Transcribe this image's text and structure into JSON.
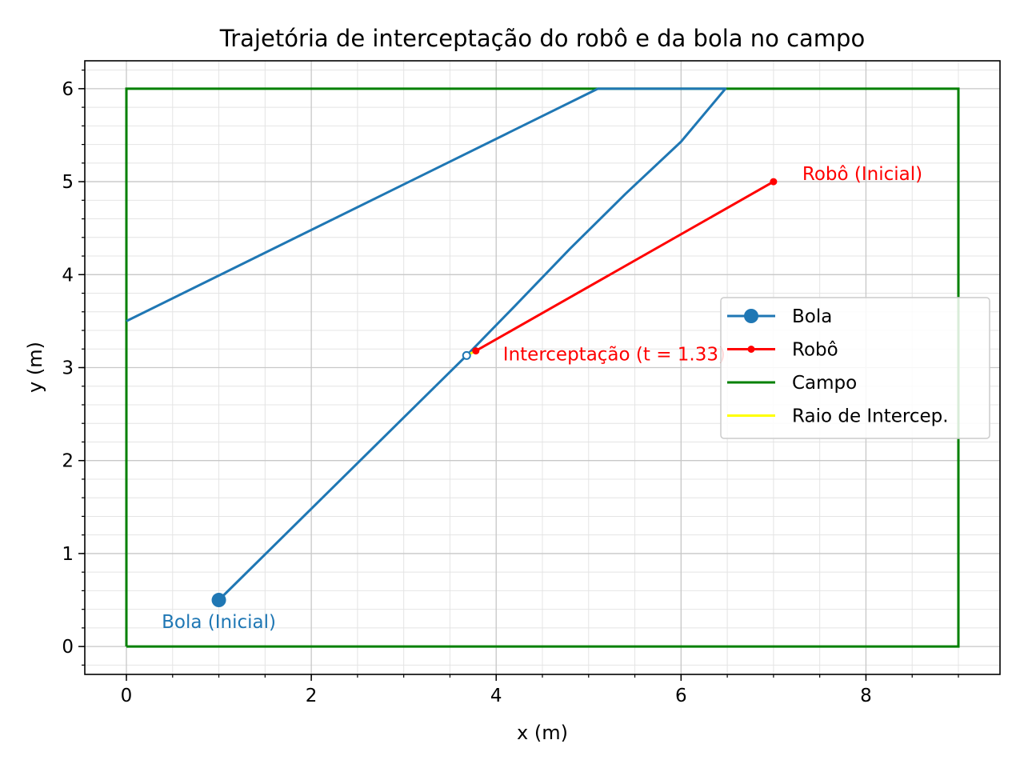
{
  "chart_data": {
    "type": "line",
    "title": "Trajetória de interceptação do robô e da bola no campo",
    "xlabel": "x (m)",
    "ylabel": "y (m)",
    "xlim": [
      -0.45,
      9.45
    ],
    "ylim": [
      -0.3,
      6.3
    ],
    "x_ticks": [
      0,
      2,
      4,
      6,
      8
    ],
    "y_ticks": [
      0,
      1,
      2,
      3,
      4,
      5,
      6
    ],
    "x_minor_step": 0.5,
    "y_minor_step": 0.2,
    "grid": true,
    "legend_position": "center-right",
    "series": [
      {
        "name": "Bola",
        "color": "#1f77b4",
        "marker": "circle",
        "x": [
          1.0,
          3.68
        ],
        "y": [
          0.5,
          3.13
        ]
      },
      {
        "name": "Robô",
        "color": "#ff0000",
        "marker": "small-circle",
        "x": [
          7.0,
          3.78
        ],
        "y": [
          5.0,
          3.18
        ]
      },
      {
        "name": "Campo",
        "color": "#008000",
        "x": [
          0,
          9,
          9,
          0,
          0
        ],
        "y": [
          0,
          0,
          6,
          6,
          0
        ]
      },
      {
        "name": "Raio de Intercep.",
        "color": "#ffff00",
        "x": [
          3.68,
          3.78
        ],
        "y": [
          3.13,
          3.18
        ]
      }
    ],
    "ball_path_extended": {
      "color": "#1f77b4",
      "x": [
        3.68,
        4.2,
        4.8,
        5.4,
        6.0,
        6.48,
        5.1,
        0.0
      ],
      "y": [
        3.13,
        3.66,
        4.28,
        4.87,
        5.43,
        6.0,
        6.0,
        3.5
      ]
    },
    "annotations": [
      {
        "text": "Bola (Inicial)",
        "x": 1.0,
        "y": 0.5,
        "color": "#1f77b4"
      },
      {
        "text": "Robô (Inicial)",
        "x": 7.0,
        "y": 5.0,
        "color": "#ff0000"
      },
      {
        "text": "Interceptação (t = 1.33)",
        "x": 3.78,
        "y": 3.18,
        "color": "#ff0000"
      }
    ]
  }
}
